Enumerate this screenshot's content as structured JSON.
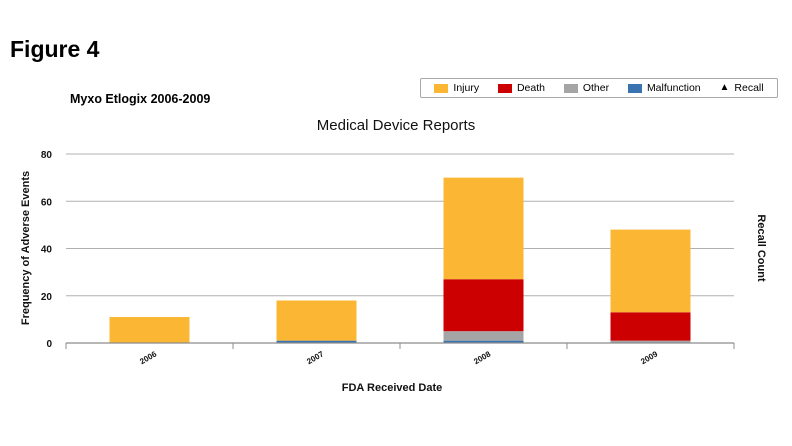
{
  "figure_title": "Figure 4",
  "subtitle": "Myxo Etlogix 2006-2009",
  "legend": [
    {
      "label": "Injury",
      "color": "#fbb733",
      "icon": "swatch"
    },
    {
      "label": "Death",
      "color": "#cc0000",
      "icon": "swatch"
    },
    {
      "label": "Other",
      "color": "#a5a5a5",
      "icon": "swatch"
    },
    {
      "label": "Malfunction",
      "color": "#3a74b0",
      "icon": "swatch"
    },
    {
      "label": "Recall",
      "color": "#000000",
      "icon": "triangle-icon"
    }
  ],
  "chart_data": {
    "type": "bar",
    "stacked": true,
    "title": "Medical Device Reports",
    "xlabel": "FDA Received Date",
    "ylabel": "Frequency of Adverse Events",
    "y2label": "Recall Count",
    "categories": [
      "2006",
      "2007",
      "2008",
      "2009"
    ],
    "ylim": [
      0,
      80
    ],
    "yticks": [
      0,
      20,
      40,
      60,
      80
    ],
    "grid": true,
    "legend_position": "top-right",
    "series": [
      {
        "name": "Malfunction",
        "color": "#3a74b0",
        "values": [
          0,
          1,
          1,
          0
        ]
      },
      {
        "name": "Other",
        "color": "#a5a5a5",
        "values": [
          0,
          0,
          4,
          1
        ]
      },
      {
        "name": "Death",
        "color": "#cc0000",
        "values": [
          0,
          0,
          22,
          12
        ]
      },
      {
        "name": "Injury",
        "color": "#fbb733",
        "values": [
          11,
          17,
          43,
          35
        ]
      }
    ]
  }
}
